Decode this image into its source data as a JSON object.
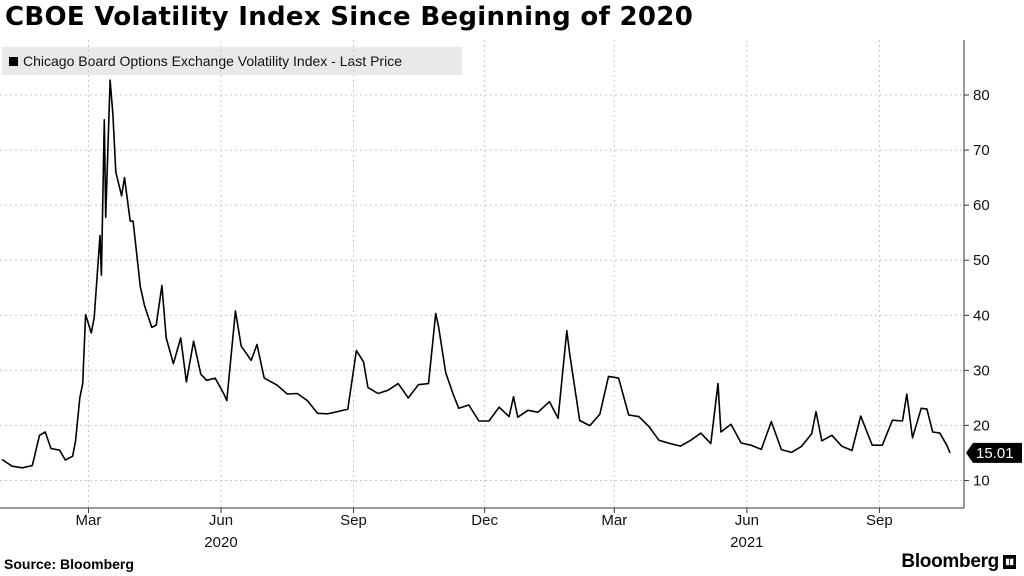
{
  "title": "CBOE Volatility Index Since Beginning of 2020",
  "footer": {
    "source": "Source: Bloomberg",
    "brand": "Bloomberg",
    "brand_icon": "bloomberg-logo-icon"
  },
  "chart_data": {
    "type": "line",
    "title": "CBOE Volatility Index Since Beginning of 2020",
    "legend_position": "top-left",
    "grid": true,
    "y_axis": {
      "position": "right",
      "ylim": [
        5,
        90
      ],
      "ticks": [
        10,
        20,
        30,
        40,
        50,
        60,
        70,
        80
      ]
    },
    "x_axis": {
      "xlim": [
        "2020-01-01",
        "2021-10-20"
      ],
      "ticks": [
        {
          "date": "2020-03-01",
          "label": "Mar"
        },
        {
          "date": "2020-06-01",
          "label": "Jun"
        },
        {
          "date": "2020-09-01",
          "label": "Sep"
        },
        {
          "date": "2020-12-01",
          "label": "Dec"
        },
        {
          "date": "2021-03-01",
          "label": "Mar"
        },
        {
          "date": "2021-06-01",
          "label": "Jun"
        },
        {
          "date": "2021-09-01",
          "label": "Sep"
        }
      ],
      "year_labels": [
        {
          "date": "2020-06-01",
          "label": "2020"
        },
        {
          "date": "2021-06-01",
          "label": "2021"
        }
      ]
    },
    "series": [
      {
        "name": "Chicago Board Options Exchange Volatility Index - Last Price",
        "color": "#000000",
        "last_value_label": "15.01",
        "points": [
          [
            "2020-01-01",
            13.8
          ],
          [
            "2020-01-08",
            12.6
          ],
          [
            "2020-01-15",
            12.3
          ],
          [
            "2020-01-22",
            12.7
          ],
          [
            "2020-01-27",
            18.2
          ],
          [
            "2020-01-31",
            18.8
          ],
          [
            "2020-02-04",
            15.8
          ],
          [
            "2020-02-10",
            15.5
          ],
          [
            "2020-02-14",
            13.7
          ],
          [
            "2020-02-19",
            14.4
          ],
          [
            "2020-02-21",
            17.1
          ],
          [
            "2020-02-24",
            25.0
          ],
          [
            "2020-02-26",
            27.6
          ],
          [
            "2020-02-28",
            40.1
          ],
          [
            "2020-03-03",
            36.8
          ],
          [
            "2020-03-05",
            39.6
          ],
          [
            "2020-03-09",
            54.5
          ],
          [
            "2020-03-10",
            47.3
          ],
          [
            "2020-03-12",
            75.5
          ],
          [
            "2020-03-13",
            57.8
          ],
          [
            "2020-03-16",
            82.7
          ],
          [
            "2020-03-18",
            76.5
          ],
          [
            "2020-03-20",
            66.0
          ],
          [
            "2020-03-24",
            61.7
          ],
          [
            "2020-03-26",
            65.0
          ],
          [
            "2020-03-30",
            57.1
          ],
          [
            "2020-04-01",
            57.1
          ],
          [
            "2020-04-06",
            45.2
          ],
          [
            "2020-04-09",
            41.7
          ],
          [
            "2020-04-14",
            37.8
          ],
          [
            "2020-04-17",
            38.2
          ],
          [
            "2020-04-21",
            45.4
          ],
          [
            "2020-04-24",
            35.9
          ],
          [
            "2020-04-29",
            31.2
          ],
          [
            "2020-05-04",
            35.9
          ],
          [
            "2020-05-08",
            27.9
          ],
          [
            "2020-05-13",
            35.3
          ],
          [
            "2020-05-18",
            29.3
          ],
          [
            "2020-05-22",
            28.2
          ],
          [
            "2020-05-28",
            28.6
          ],
          [
            "2020-06-03",
            25.7
          ],
          [
            "2020-06-05",
            24.5
          ],
          [
            "2020-06-11",
            40.8
          ],
          [
            "2020-06-15",
            34.4
          ],
          [
            "2020-06-22",
            31.8
          ],
          [
            "2020-06-26",
            34.7
          ],
          [
            "2020-07-01",
            28.6
          ],
          [
            "2020-07-10",
            27.3
          ],
          [
            "2020-07-17",
            25.7
          ],
          [
            "2020-07-24",
            25.8
          ],
          [
            "2020-07-31",
            24.5
          ],
          [
            "2020-08-07",
            22.2
          ],
          [
            "2020-08-14",
            22.1
          ],
          [
            "2020-08-21",
            22.5
          ],
          [
            "2020-08-28",
            22.96
          ],
          [
            "2020-09-03",
            33.6
          ],
          [
            "2020-09-08",
            31.5
          ],
          [
            "2020-09-11",
            26.9
          ],
          [
            "2020-09-18",
            25.8
          ],
          [
            "2020-09-25",
            26.4
          ],
          [
            "2020-10-02",
            27.6
          ],
          [
            "2020-10-09",
            25.0
          ],
          [
            "2020-10-16",
            27.4
          ],
          [
            "2020-10-23",
            27.6
          ],
          [
            "2020-10-28",
            40.3
          ],
          [
            "2020-10-30",
            38.0
          ],
          [
            "2020-11-04",
            29.6
          ],
          [
            "2020-11-09",
            25.8
          ],
          [
            "2020-11-13",
            23.1
          ],
          [
            "2020-11-20",
            23.7
          ],
          [
            "2020-11-27",
            20.8
          ],
          [
            "2020-12-04",
            20.8
          ],
          [
            "2020-12-11",
            23.3
          ],
          [
            "2020-12-18",
            21.6
          ],
          [
            "2020-12-21",
            25.2
          ],
          [
            "2020-12-24",
            21.5
          ],
          [
            "2020-12-31",
            22.75
          ],
          [
            "2021-01-07",
            22.4
          ],
          [
            "2021-01-15",
            24.3
          ],
          [
            "2021-01-21",
            21.3
          ],
          [
            "2021-01-27",
            37.2
          ],
          [
            "2021-01-29",
            33.1
          ],
          [
            "2021-02-05",
            20.9
          ],
          [
            "2021-02-12",
            19.97
          ],
          [
            "2021-02-19",
            22.05
          ],
          [
            "2021-02-25",
            28.9
          ],
          [
            "2021-03-04",
            28.6
          ],
          [
            "2021-03-11",
            21.9
          ],
          [
            "2021-03-18",
            21.6
          ],
          [
            "2021-03-25",
            19.8
          ],
          [
            "2021-04-01",
            17.3
          ],
          [
            "2021-04-09",
            16.7
          ],
          [
            "2021-04-16",
            16.25
          ],
          [
            "2021-04-23",
            17.3
          ],
          [
            "2021-04-30",
            18.6
          ],
          [
            "2021-05-07",
            16.7
          ],
          [
            "2021-05-12",
            27.6
          ],
          [
            "2021-05-14",
            18.8
          ],
          [
            "2021-05-21",
            20.2
          ],
          [
            "2021-05-28",
            16.8
          ],
          [
            "2021-06-04",
            16.4
          ],
          [
            "2021-06-11",
            15.65
          ],
          [
            "2021-06-18",
            20.7
          ],
          [
            "2021-06-25",
            15.6
          ],
          [
            "2021-07-02",
            15.1
          ],
          [
            "2021-07-09",
            16.2
          ],
          [
            "2021-07-16",
            18.5
          ],
          [
            "2021-07-19",
            22.5
          ],
          [
            "2021-07-23",
            17.2
          ],
          [
            "2021-07-30",
            18.2
          ],
          [
            "2021-08-06",
            16.2
          ],
          [
            "2021-08-13",
            15.45
          ],
          [
            "2021-08-19",
            21.7
          ],
          [
            "2021-08-27",
            16.4
          ],
          [
            "2021-09-03",
            16.4
          ],
          [
            "2021-09-10",
            20.95
          ],
          [
            "2021-09-17",
            20.8
          ],
          [
            "2021-09-20",
            25.7
          ],
          [
            "2021-09-24",
            17.75
          ],
          [
            "2021-09-30",
            23.1
          ],
          [
            "2021-10-04",
            22.96
          ],
          [
            "2021-10-08",
            18.8
          ],
          [
            "2021-10-13",
            18.6
          ],
          [
            "2021-10-18",
            16.3
          ],
          [
            "2021-10-20",
            15.01
          ]
        ]
      }
    ]
  }
}
